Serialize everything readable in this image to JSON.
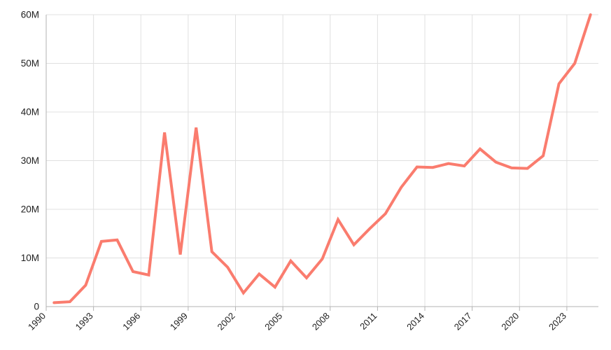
{
  "chart_data": {
    "type": "line",
    "title": "",
    "xlabel": "",
    "ylabel": "",
    "unit": "M",
    "categories": [
      "1990",
      "1991",
      "1992",
      "1993",
      "1994",
      "1995",
      "1996",
      "1997",
      "1998",
      "1999",
      "2000",
      "2001",
      "2002",
      "2003",
      "2004",
      "2005",
      "2006",
      "2007",
      "2008",
      "2009",
      "2010",
      "2011",
      "2012",
      "2013",
      "2014",
      "2015",
      "2016",
      "2017",
      "2018",
      "2019",
      "2020",
      "2021",
      "2022",
      "2023",
      "2024"
    ],
    "series": [
      {
        "name": "series-1",
        "color": "#FA7C6E",
        "values_millions": [
          0.8,
          1.0,
          4.4,
          13.4,
          13.7,
          7.2,
          6.5,
          35.8,
          10.7,
          36.8,
          11.3,
          8.1,
          2.8,
          6.7,
          4.0,
          9.4,
          5.9,
          9.8,
          17.9,
          12.7,
          16.0,
          19.1,
          24.5,
          28.7,
          28.6,
          29.4,
          28.9,
          32.4,
          29.7,
          28.5,
          28.4,
          31.0,
          45.8,
          50.0,
          60.0
        ]
      }
    ],
    "y_axis": {
      "min": 0,
      "max": 60,
      "tick_interval": 10,
      "tick_labels": [
        "0",
        "10M",
        "20M",
        "30M",
        "40M",
        "50M",
        "60M"
      ]
    },
    "x_axis": {
      "tick_labels": [
        "1990",
        "1993",
        "1996",
        "1999",
        "2002",
        "2005",
        "2008",
        "2011",
        "2014",
        "2017",
        "2020",
        "2023"
      ],
      "label_every_n_categories": 3,
      "label_rotation_deg": -45
    },
    "grid": true,
    "legend": false
  },
  "style": {
    "background_color": "#FFFFFF",
    "gridline_color": "#E0E0E0",
    "axis_line_color": "#B3B3B3",
    "label_color": "#1E1E1E",
    "series_color": "#FA7C6E"
  }
}
